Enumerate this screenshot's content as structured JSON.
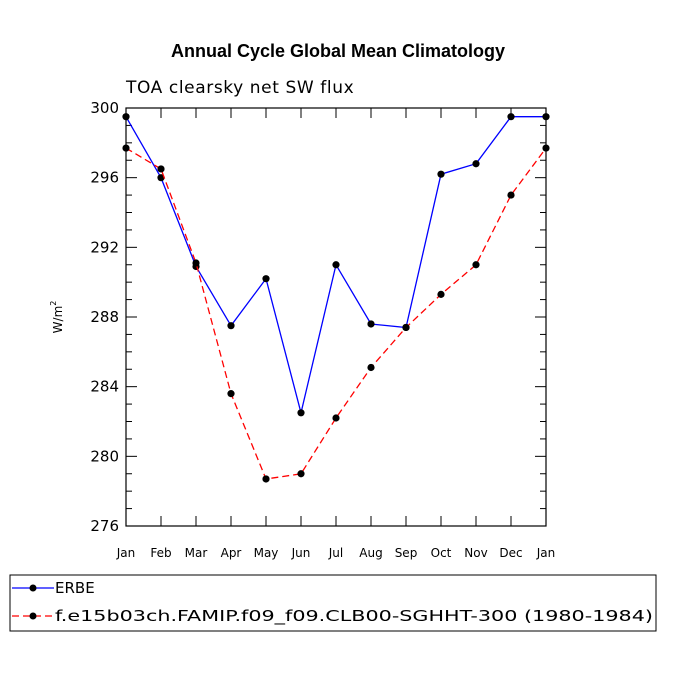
{
  "chart_data": {
    "type": "line",
    "title": "Annual Cycle Global Mean Climatology",
    "subtitle": "TOA clearsky net SW flux",
    "ylabel_main": "W/m",
    "ylabel_sup": "2",
    "xlabel": "",
    "ylim": [
      276,
      300
    ],
    "yticks": [
      "276",
      "280",
      "284",
      "288",
      "292",
      "296",
      "300"
    ],
    "categories": [
      "Jan",
      "Feb",
      "Mar",
      "Apr",
      "May",
      "Jun",
      "Jul",
      "Aug",
      "Sep",
      "Oct",
      "Nov",
      "Dec",
      "Jan"
    ],
    "series": [
      {
        "name": "ERBE",
        "color": "#0000ff",
        "dash": "solid",
        "values": [
          299.5,
          296.0,
          290.9,
          287.5,
          290.2,
          282.5,
          291.0,
          287.6,
          287.4,
          296.2,
          296.8,
          299.5,
          299.5
        ]
      },
      {
        "name": "f.e15b03ch.FAMIP.f09_f09.CLB00-SGHHT-300 (1980-1984)",
        "color": "#ff0000",
        "dash": "dashed",
        "values": [
          297.7,
          296.5,
          291.1,
          283.6,
          278.7,
          279.0,
          282.2,
          285.1,
          287.4,
          289.3,
          291.0,
          295.0,
          297.7
        ]
      }
    ]
  }
}
